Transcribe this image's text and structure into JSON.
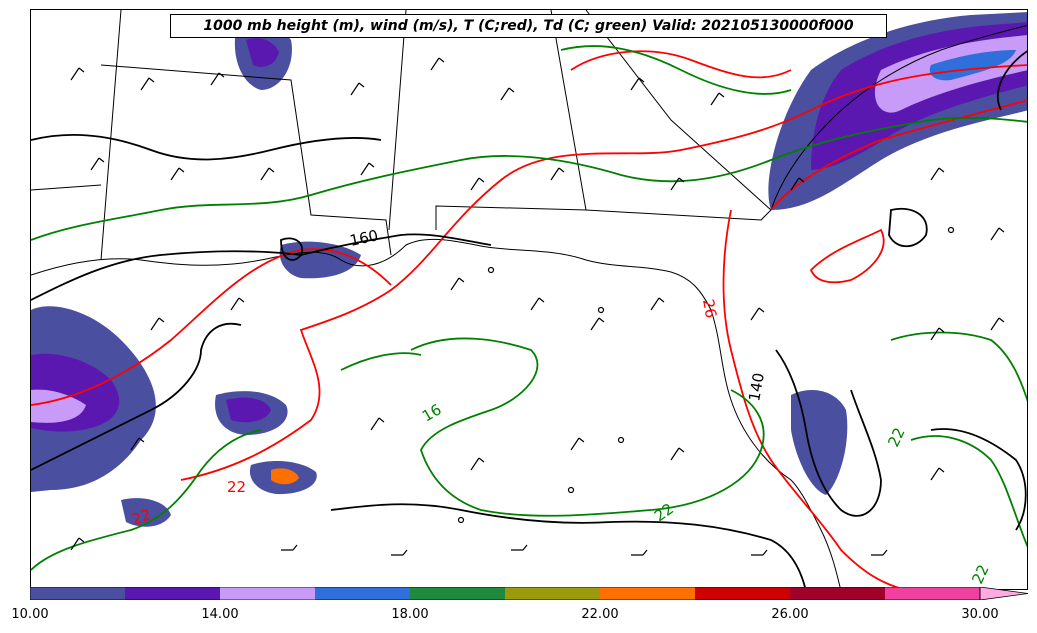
{
  "title": "1000 mb height (m), wind (m/s), T (C;red), Td (C; green) Valid: 202105130000f000",
  "map": {
    "height_contours": [
      {
        "label": "160"
      },
      {
        "label": "140"
      }
    ],
    "temperature_contours": [
      {
        "label": "22",
        "color": "#ff0000"
      },
      {
        "label": "26",
        "color": "#ff0000"
      },
      {
        "label": "22",
        "color": "#ff0000"
      }
    ],
    "dewpoint_contours": [
      {
        "label": "16",
        "color": "#008000"
      },
      {
        "label": "22",
        "color": "#008000"
      },
      {
        "label": "22",
        "color": "#008000"
      },
      {
        "label": "22",
        "color": "#008000"
      }
    ],
    "colors": {
      "height": "#000000",
      "temperature": "#ff0000",
      "dewpoint": "#008000"
    }
  },
  "colorbar": {
    "bins": [
      {
        "from": 10,
        "to": 12,
        "color": "#4a4fa0"
      },
      {
        "from": 12,
        "to": 14,
        "color": "#5a18b0"
      },
      {
        "from": 14,
        "to": 16,
        "color": "#c89bf8"
      },
      {
        "from": 16,
        "to": 18,
        "color": "#2f6fdc"
      },
      {
        "from": 18,
        "to": 20,
        "color": "#1e8a3c"
      },
      {
        "from": 20,
        "to": 22,
        "color": "#9a9a0c"
      },
      {
        "from": 22,
        "to": 24,
        "color": "#ff7000"
      },
      {
        "from": 24,
        "to": 26,
        "color": "#d00000"
      },
      {
        "from": 26,
        "to": 28,
        "color": "#a0002a"
      },
      {
        "from": 28,
        "to": 30,
        "color": "#f040a0"
      }
    ],
    "extend_color": "#ffaae0",
    "tick_labels": [
      "10.00",
      "14.00",
      "18.00",
      "22.00",
      "26.00",
      "30.00"
    ],
    "tick_values": [
      10,
      14,
      18,
      22,
      26,
      30
    ]
  }
}
